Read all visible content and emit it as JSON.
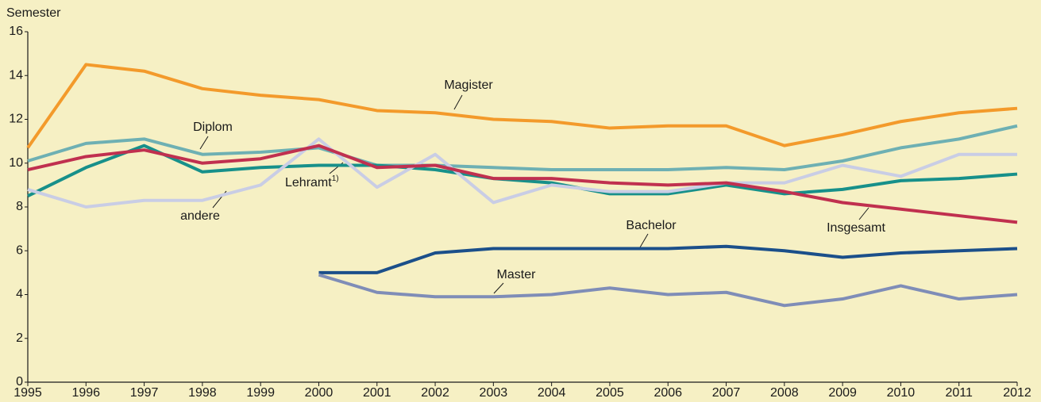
{
  "chart_data": {
    "type": "line",
    "y_axis_label": "Semester",
    "x": [
      1995,
      1996,
      1997,
      1998,
      1999,
      2000,
      2001,
      2002,
      2003,
      2004,
      2005,
      2006,
      2007,
      2008,
      2009,
      2010,
      2011,
      2012
    ],
    "xlim": [
      1995,
      2012
    ],
    "xticks": [
      1995,
      1996,
      1997,
      1998,
      1999,
      2000,
      2001,
      2002,
      2003,
      2004,
      2005,
      2006,
      2007,
      2008,
      2009,
      2010,
      2011,
      2012
    ],
    "ylim": [
      0,
      16
    ],
    "yticks": [
      0,
      2,
      4,
      6,
      8,
      10,
      12,
      14,
      16
    ],
    "grid": false,
    "series": [
      {
        "name": "Diplom",
        "color": "#6eb0b3",
        "values": [
          10.1,
          10.9,
          11.1,
          10.4,
          10.5,
          10.7,
          9.9,
          9.9,
          9.8,
          9.7,
          9.7,
          9.7,
          9.8,
          9.7,
          10.1,
          10.7,
          11.1,
          11.7
        ]
      },
      {
        "name": "Lehramt",
        "footnote_marker": "1)",
        "color": "#17908a",
        "values": [
          8.5,
          9.8,
          10.8,
          9.6,
          9.8,
          9.9,
          9.9,
          9.7,
          9.3,
          9.1,
          8.6,
          8.6,
          9.0,
          8.6,
          8.8,
          9.2,
          9.3,
          9.5
        ]
      },
      {
        "name": "andere",
        "color": "#c9cde5",
        "values": [
          8.8,
          8.0,
          8.3,
          8.3,
          9.0,
          11.1,
          8.9,
          10.4,
          8.2,
          9.0,
          8.7,
          8.7,
          9.1,
          9.1,
          9.9,
          9.4,
          10.4,
          10.4
        ]
      },
      {
        "name": "Magister",
        "color": "#f39a2b",
        "values": [
          10.7,
          14.5,
          14.2,
          13.4,
          13.1,
          12.9,
          12.4,
          12.3,
          12.0,
          11.9,
          11.6,
          11.7,
          11.7,
          10.8,
          11.3,
          11.9,
          12.3,
          12.5
        ]
      },
      {
        "name": "Insgesamt",
        "color": "#c0304f",
        "values": [
          9.7,
          10.3,
          10.6,
          10.0,
          10.2,
          10.8,
          9.8,
          9.9,
          9.3,
          9.3,
          9.1,
          9.0,
          9.1,
          8.7,
          8.2,
          7.9,
          7.6,
          7.3
        ]
      },
      {
        "name": "Bachelor",
        "color": "#1b4f8a",
        "values": [
          null,
          null,
          null,
          null,
          null,
          5.0,
          5.0,
          5.9,
          6.1,
          6.1,
          6.1,
          6.1,
          6.2,
          6.0,
          5.7,
          5.9,
          6.0,
          6.1
        ]
      },
      {
        "name": "Master",
        "color": "#7f8db7",
        "values": [
          null,
          null,
          null,
          null,
          null,
          4.9,
          4.1,
          3.9,
          3.9,
          4.0,
          4.3,
          4.0,
          4.1,
          3.5,
          3.8,
          4.4,
          3.8,
          4.0
        ]
      }
    ]
  }
}
